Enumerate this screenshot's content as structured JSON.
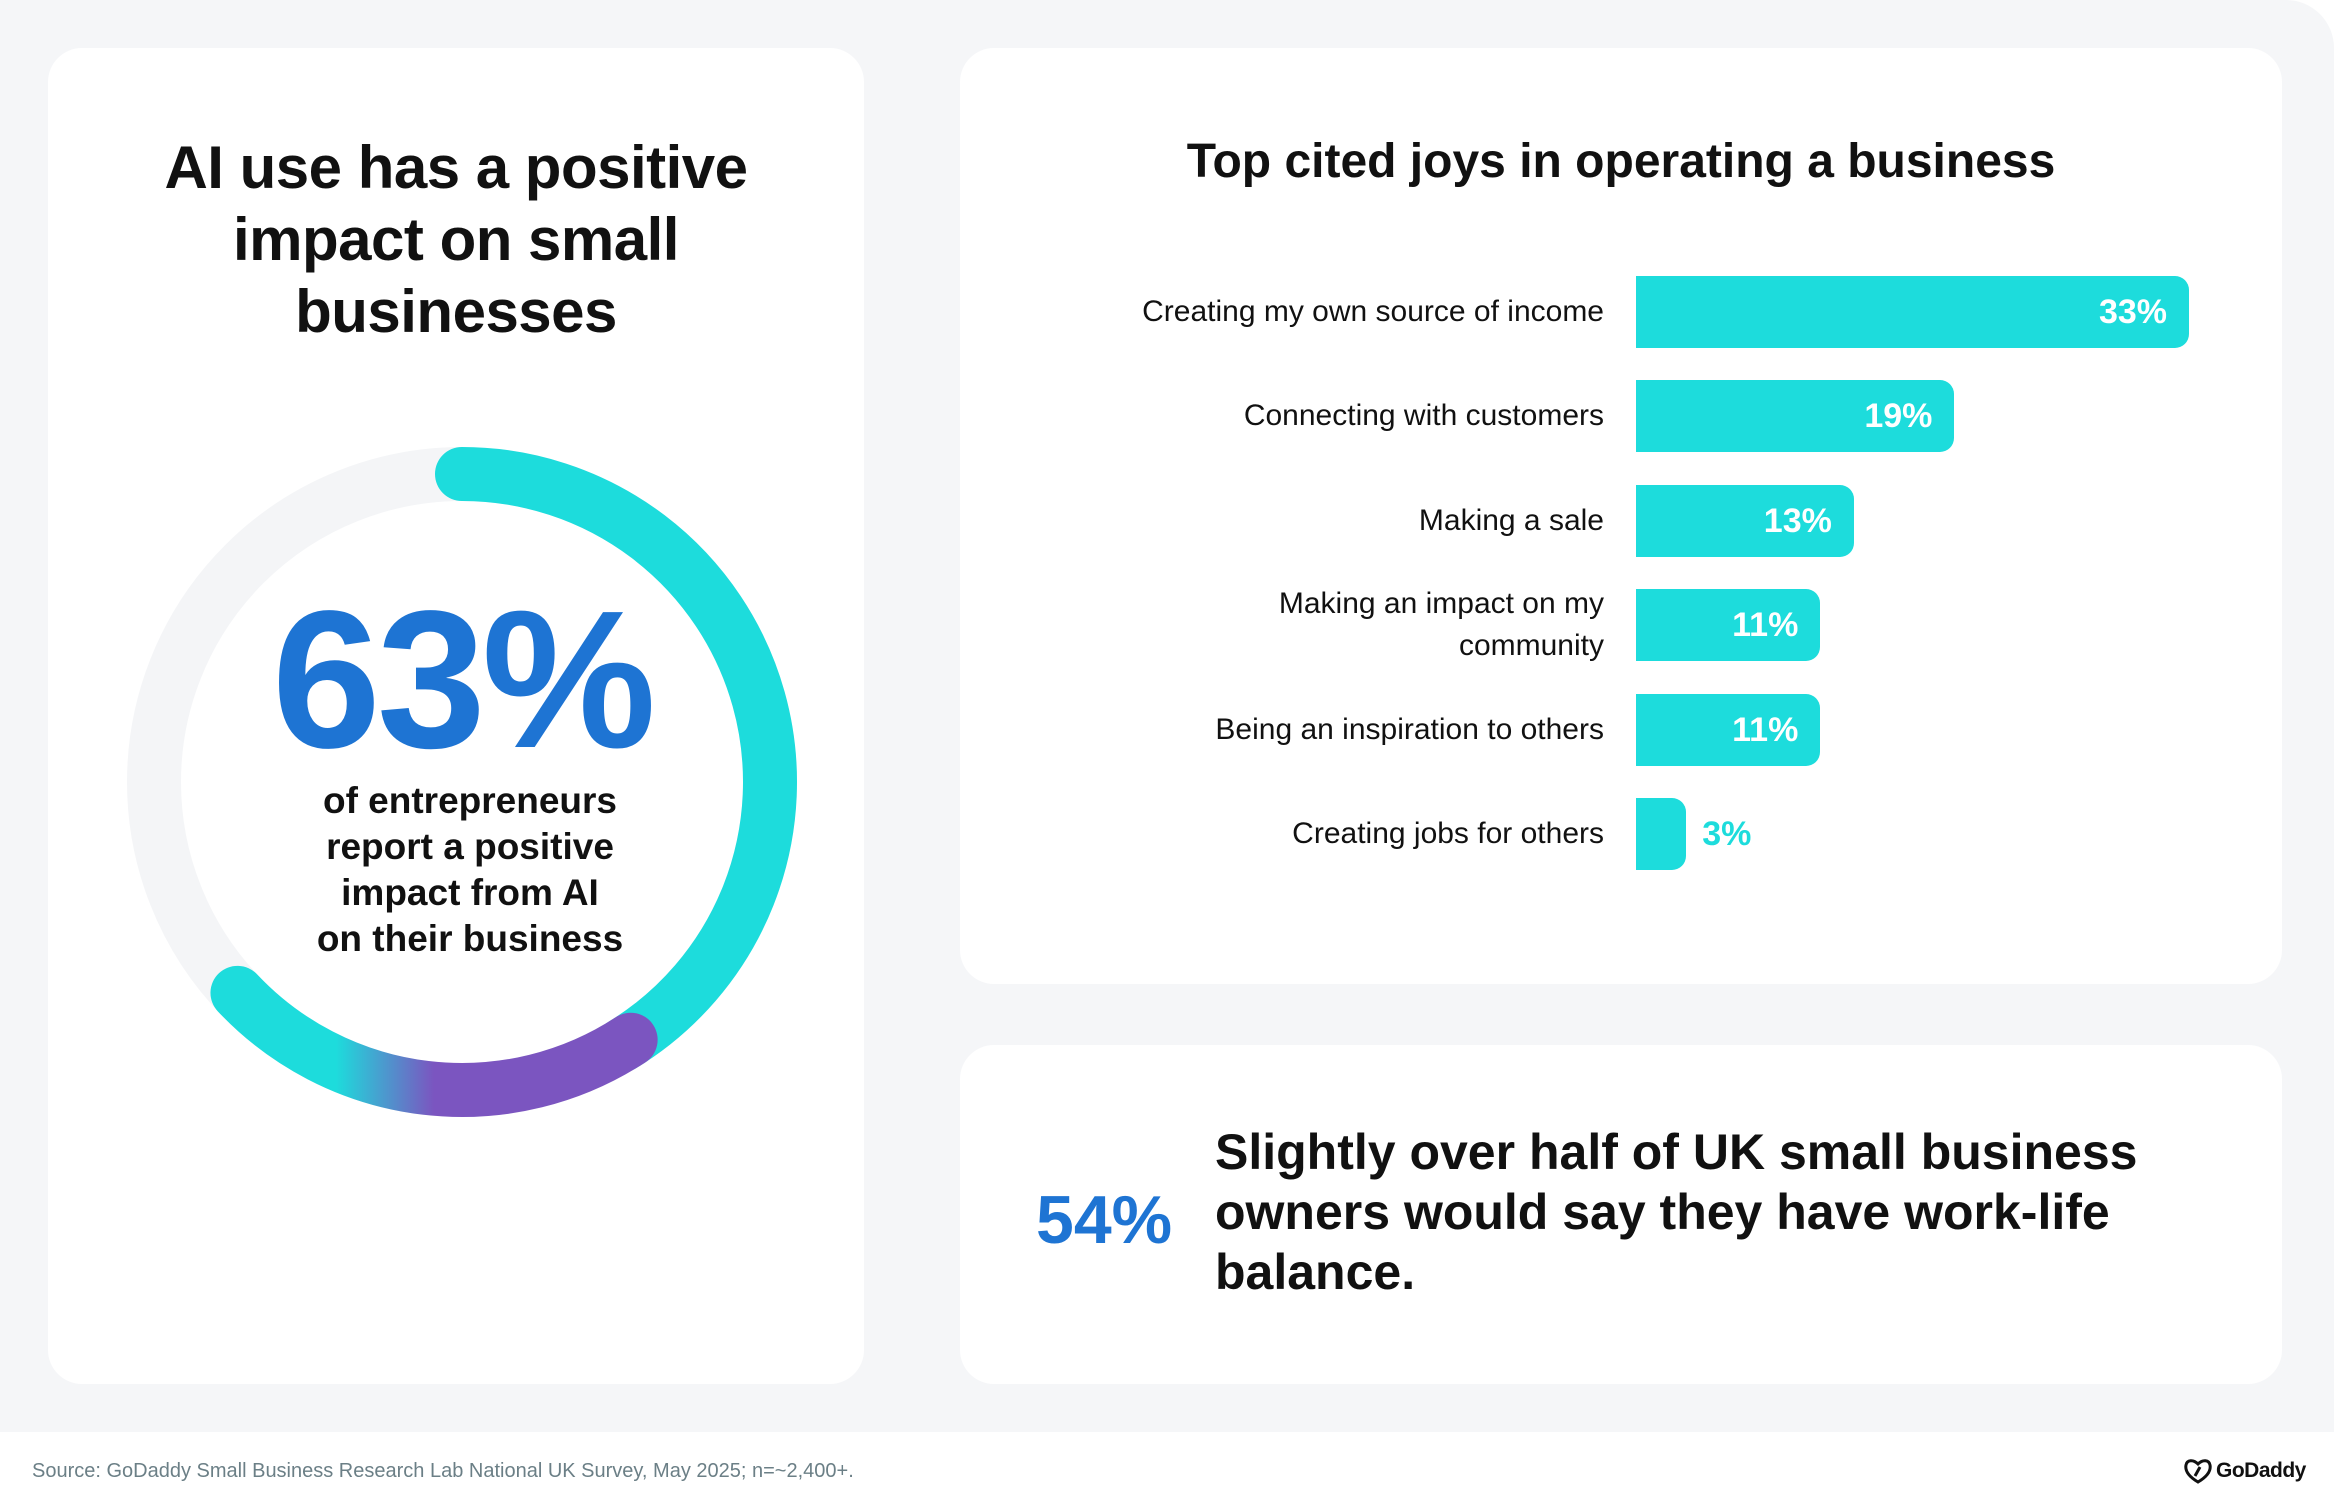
{
  "left_panel": {
    "title_lines": [
      "AI use has a positive",
      "impact on small",
      "businesses"
    ],
    "ring": {
      "value_label": "63%",
      "value_percent": 63,
      "description_lines": [
        "of entrepreneurs",
        "report a positive",
        "impact from AI",
        "on their business"
      ],
      "colors": {
        "track": "#f4f5f7",
        "start": "#7b55c0",
        "end": "#1ddcdc"
      }
    }
  },
  "stat_panel": {
    "value": "54%",
    "text_lines": [
      "Slightly over half of UK small business",
      "owners would say they have work-life",
      "balance."
    ],
    "value_color": "#1e74d3"
  },
  "footer": {
    "source": "Source: GoDaddy Small Business Research Lab National UK Survey, May 2025; n=~2,400+.",
    "logo_text": "GoDaddy"
  },
  "chart_data": {
    "type": "bar",
    "orientation": "horizontal",
    "title": "Top cited joys in operating a business",
    "categories": [
      "Creating my own source of income",
      "Connecting with customers",
      "Making a sale",
      "Making an impact on my community",
      "Being an inspiration to others",
      "Creating jobs for others"
    ],
    "category_lines": [
      [
        "Creating my own source of income"
      ],
      [
        "Connecting with customers"
      ],
      [
        "Making a sale"
      ],
      [
        "Making an impact on my",
        "community"
      ],
      [
        "Being an inspiration to others"
      ],
      [
        "Creating jobs for others"
      ]
    ],
    "values": [
      33,
      19,
      13,
      11,
      11,
      3
    ],
    "value_labels": [
      "33%",
      "19%",
      "13%",
      "11%",
      "11%",
      "3%"
    ],
    "unit": "%",
    "xlabel": "",
    "ylabel": "",
    "xlim": [
      0,
      33
    ],
    "grid": false,
    "legend": "none",
    "bar_color": "#1ddcdc"
  }
}
